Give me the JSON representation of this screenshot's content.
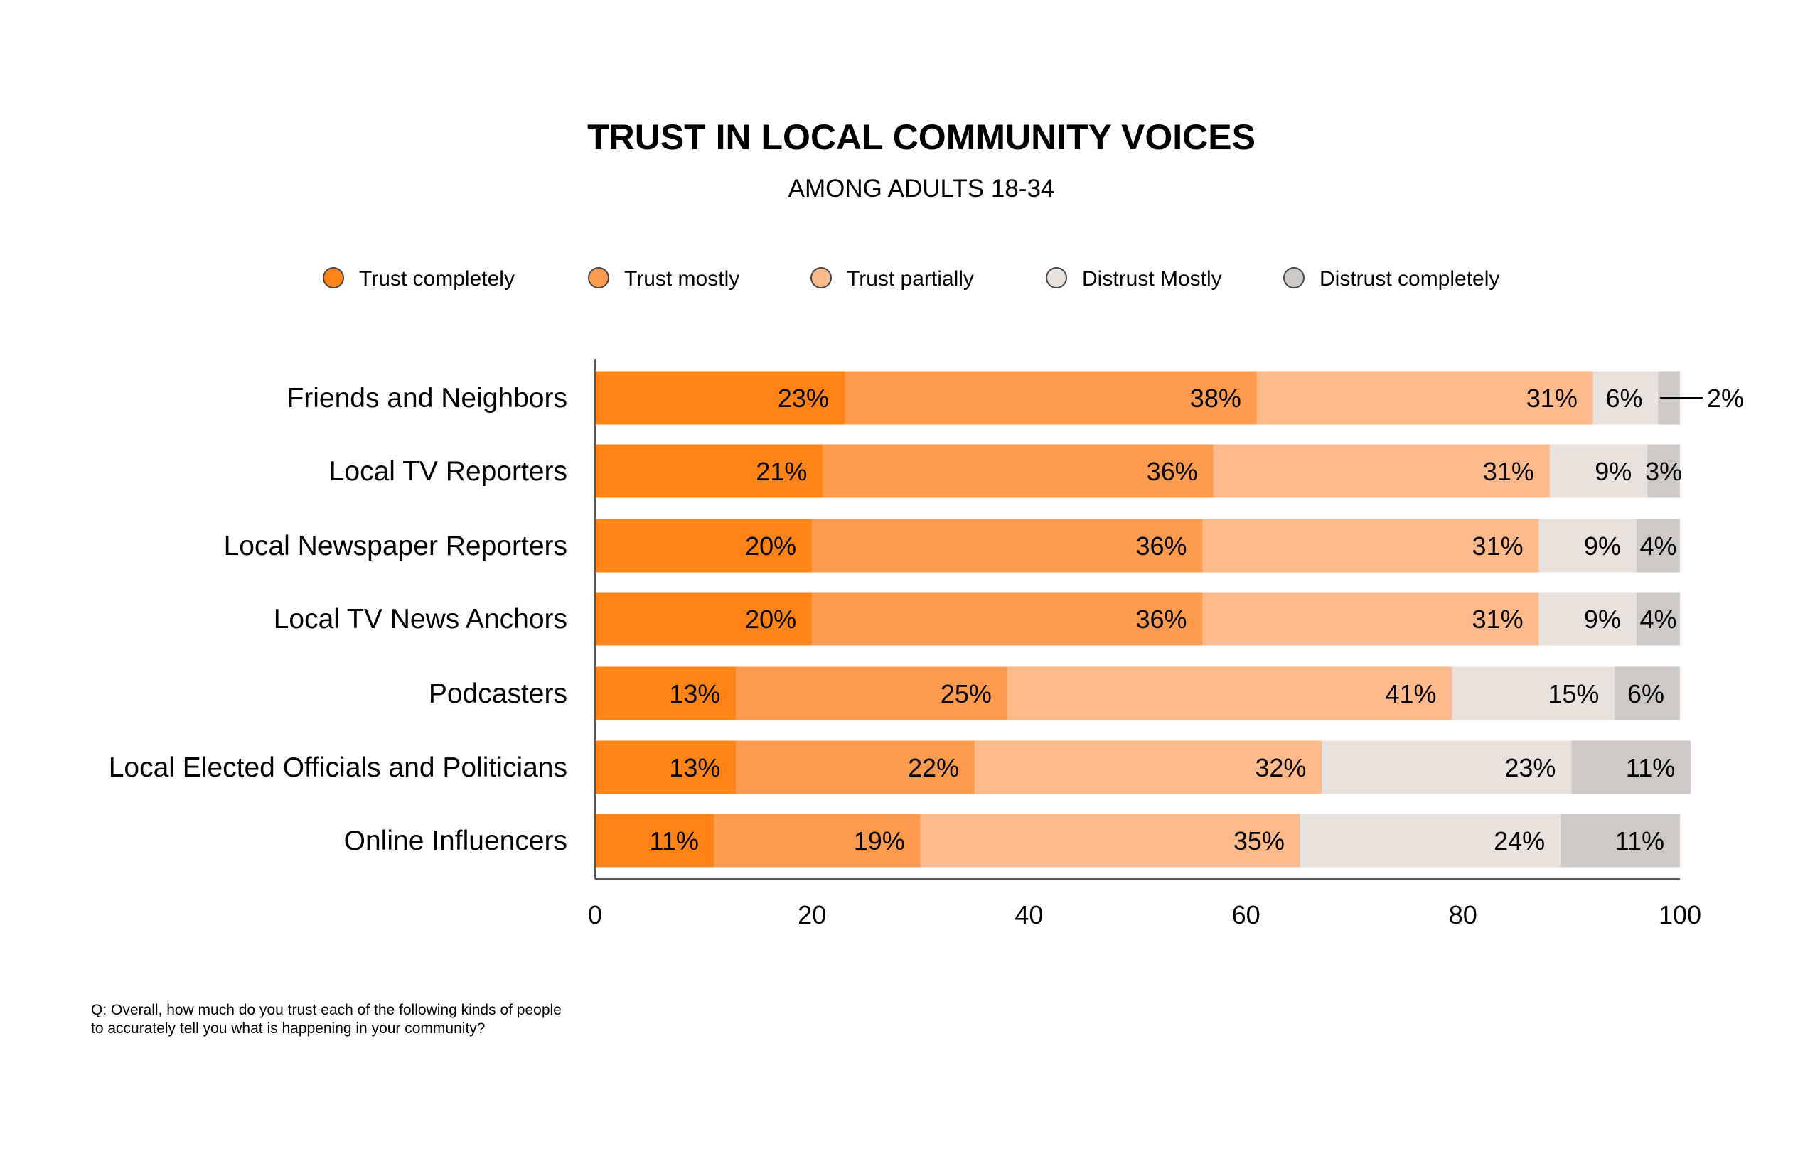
{
  "chart_data": {
    "type": "bar",
    "orientation": "horizontal",
    "stacked": true,
    "title": "TRUST IN LOCAL COMMUNITY VOICES",
    "subtitle": "AMONG ADULTS 18-34",
    "categories": [
      "Friends and Neighbors",
      "Local TV Reporters",
      "Local Newspaper Reporters",
      "Local TV News Anchors",
      "Podcasters",
      "Local Elected Officials and Politicians",
      "Online Influencers"
    ],
    "series": [
      {
        "name": "Trust completely",
        "color": "#FF8316",
        "values": [
          23,
          21,
          20,
          20,
          13,
          13,
          11
        ]
      },
      {
        "name": "Trust mostly",
        "color": "#FF9B4F",
        "values": [
          38,
          36,
          36,
          36,
          25,
          22,
          19
        ]
      },
      {
        "name": "Trust partially",
        "color": "#FFBA8C",
        "values": [
          31,
          31,
          31,
          31,
          41,
          32,
          35
        ]
      },
      {
        "name": "Distrust Mostly",
        "color": "#E8E1DC",
        "values": [
          6,
          9,
          9,
          9,
          15,
          23,
          24
        ]
      },
      {
        "name": "Distrust completely",
        "color": "#CCC9C7",
        "values": [
          2,
          3,
          4,
          4,
          6,
          11,
          11
        ]
      }
    ],
    "xlim": [
      0,
      100
    ],
    "xticks": [
      0,
      20,
      40,
      60,
      80,
      100
    ],
    "legend": "top",
    "grid": false,
    "footnote": [
      "Q: Overall, how much do you trust each of the following kinds of people",
      "to accurately tell you what is happening in your community?"
    ]
  }
}
